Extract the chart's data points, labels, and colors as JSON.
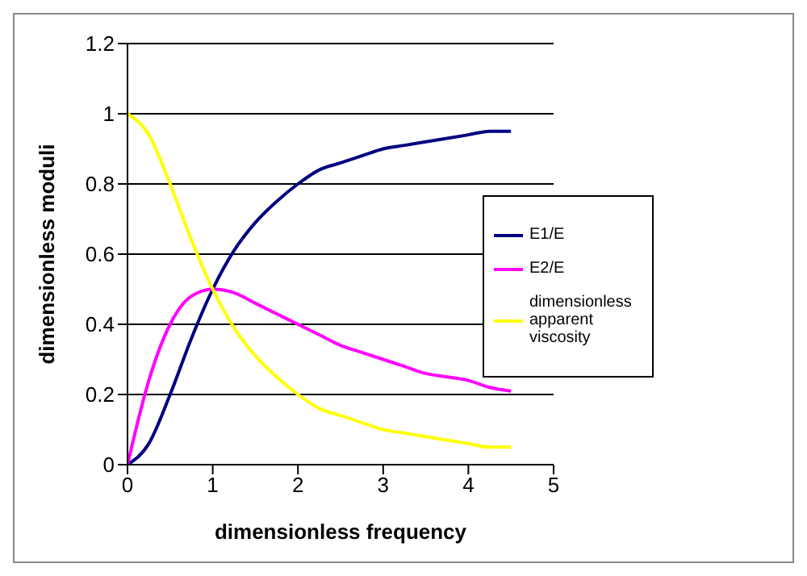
{
  "chart_data": {
    "type": "line",
    "xlabel": "dimensionless frequency",
    "ylabel": "dimensionless moduli",
    "x": [
      0,
      0.25,
      0.5,
      0.75,
      1,
      1.25,
      1.5,
      1.75,
      2,
      2.25,
      2.5,
      2.75,
      3,
      3.25,
      3.5,
      3.75,
      4,
      4.25,
      4.5
    ],
    "series": [
      {
        "name": "E1/E",
        "color": "#000080",
        "values": [
          0,
          0.06,
          0.2,
          0.36,
          0.5,
          0.61,
          0.69,
          0.75,
          0.8,
          0.84,
          0.86,
          0.88,
          0.9,
          0.91,
          0.92,
          0.93,
          0.94,
          0.95,
          0.95
        ]
      },
      {
        "name": "E2/E",
        "color": "#ff00ff",
        "values": [
          0,
          0.24,
          0.4,
          0.48,
          0.5,
          0.49,
          0.46,
          0.43,
          0.4,
          0.37,
          0.34,
          0.32,
          0.3,
          0.28,
          0.26,
          0.25,
          0.24,
          0.22,
          0.21
        ]
      },
      {
        "name": "dimensionless apparent viscosity",
        "color": "#ffff00",
        "values": [
          1,
          0.94,
          0.8,
          0.64,
          0.5,
          0.39,
          0.31,
          0.25,
          0.2,
          0.16,
          0.14,
          0.12,
          0.1,
          0.09,
          0.08,
          0.07,
          0.06,
          0.05,
          0.05
        ]
      }
    ],
    "xlim": [
      0,
      5
    ],
    "xticks": [
      0,
      1,
      2,
      3,
      4,
      5
    ],
    "ylim": [
      0,
      1.2
    ],
    "yticks": [
      0,
      0.2,
      0.4,
      0.6,
      0.8,
      1,
      1.2
    ],
    "grid": "y",
    "legend": "right",
    "marker": "none",
    "line_style": "solid"
  }
}
